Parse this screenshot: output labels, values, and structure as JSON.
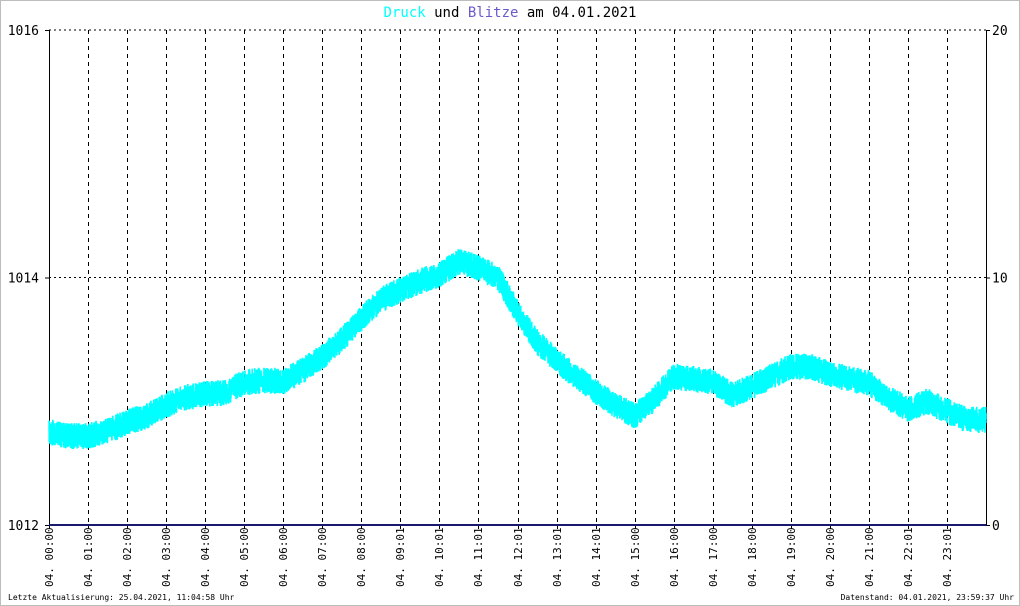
{
  "title": {
    "part1": "Druck",
    "part2": " und ",
    "part3": "Blitze",
    "part4": " am 04.01.2021"
  },
  "footer": {
    "left": "Letzte Aktualisierung: 25.04.2021, 11:04:58 Uhr",
    "right": "Datenstand: 04.01.2021, 23:59:37 Uhr"
  },
  "colors": {
    "druck": "#00ffff",
    "blitze": "#6a5acd",
    "baseline": "#191970",
    "grid": "#000000"
  },
  "chart_data": {
    "type": "line",
    "title": "Druck und Blitze am 04.01.2021",
    "xlabel": "",
    "ylabel": "",
    "ylim_left": [
      1012,
      1016
    ],
    "ylim_right": [
      0,
      20
    ],
    "yticks_left": [
      "1016",
      "1014",
      "1012"
    ],
    "yticks_right": [
      "20",
      "10",
      "0"
    ],
    "x_ticks": [
      "04. 00:00",
      "04. 01:00",
      "04. 02:00",
      "04. 03:00",
      "04. 04:00",
      "04. 05:00",
      "04. 06:00",
      "04. 07:00",
      "04. 08:00",
      "04. 09:01",
      "04. 10:01",
      "04. 11:01",
      "04. 12:01",
      "04. 13:01",
      "04. 14:01",
      "04. 15:00",
      "04. 16:00",
      "04. 17:00",
      "04. 18:00",
      "04. 19:00",
      "04. 20:00",
      "04. 21:00",
      "04. 22:01",
      "04. 23:01"
    ],
    "grid": true,
    "series": [
      {
        "name": "Druck",
        "axis": "left",
        "x_hours": [
          0,
          0.5,
          1,
          1.5,
          2,
          2.5,
          3,
          3.5,
          4,
          4.5,
          5,
          5.5,
          6,
          6.5,
          7,
          7.5,
          8,
          8.5,
          9,
          9.5,
          10,
          10.5,
          11,
          11.5,
          12,
          12.5,
          13,
          13.5,
          14,
          14.5,
          15,
          15.5,
          16,
          16.5,
          17,
          17.5,
          18,
          18.5,
          19,
          19.5,
          20,
          20.5,
          21,
          21.5,
          22,
          22.5,
          23,
          23.5,
          24
        ],
        "values": [
          1012.75,
          1012.72,
          1012.72,
          1012.76,
          1012.83,
          1012.88,
          1012.97,
          1013.03,
          1013.06,
          1013.07,
          1013.15,
          1013.17,
          1013.16,
          1013.25,
          1013.36,
          1013.5,
          1013.67,
          1013.82,
          1013.9,
          1013.97,
          1014.02,
          1014.13,
          1014.08,
          1014.0,
          1013.72,
          1013.48,
          1013.33,
          1013.2,
          1013.08,
          1012.97,
          1012.88,
          1013.02,
          1013.2,
          1013.18,
          1013.16,
          1013.05,
          1013.12,
          1013.2,
          1013.28,
          1013.28,
          1013.22,
          1013.18,
          1013.15,
          1013.02,
          1012.94,
          1013.0,
          1012.92,
          1012.85,
          1012.85
        ]
      },
      {
        "name": "Blitze",
        "axis": "right",
        "x_hours": [
          0,
          24
        ],
        "values": [
          0,
          0
        ]
      }
    ]
  }
}
